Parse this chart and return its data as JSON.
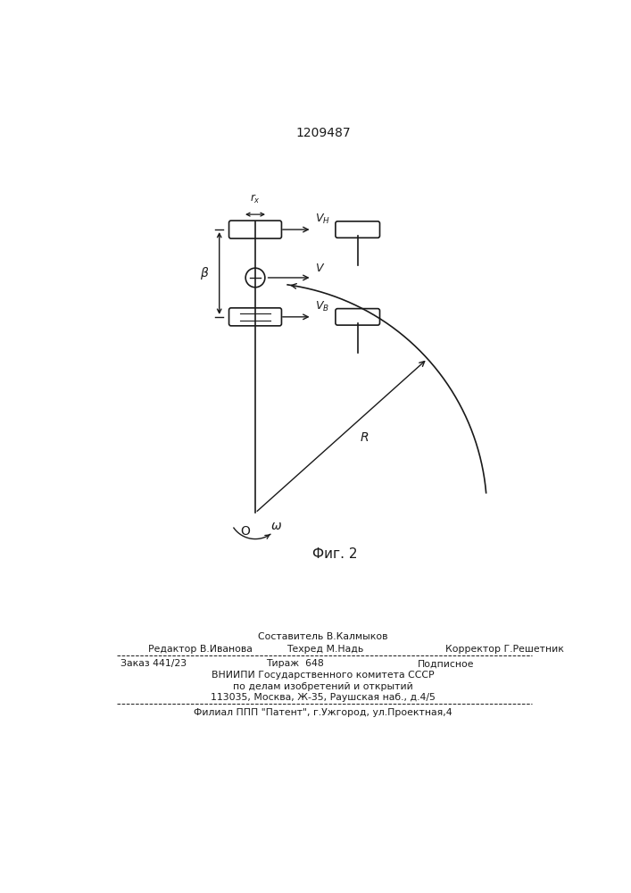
{
  "title": "1209487",
  "fig_label": "Фиг. 2",
  "line_color": "#1a1a1a",
  "footer_sestavitel": "Составитель В.Калмыков",
  "footer_redaktor": "Редактор В.Иванова",
  "footer_tehred": "Техред М.Надь",
  "footer_korrektor": "Корректор Г.Решетник",
  "footer_zakaz": "Заказ 441/23",
  "footer_tirazh": "Тираж  648",
  "footer_podpisnoe": "Подписное",
  "footer_vniip": "ВНИИПИ Государственного комитета СССР",
  "footer_po_delam": "по делам изобретений и открытий",
  "footer_address": "113035, Москва, Ж-35, Раушская наб., д.4/5",
  "footer_filial": "Филиал ППП \"Патент\", г.Ужгород, ул.Проектная,4"
}
